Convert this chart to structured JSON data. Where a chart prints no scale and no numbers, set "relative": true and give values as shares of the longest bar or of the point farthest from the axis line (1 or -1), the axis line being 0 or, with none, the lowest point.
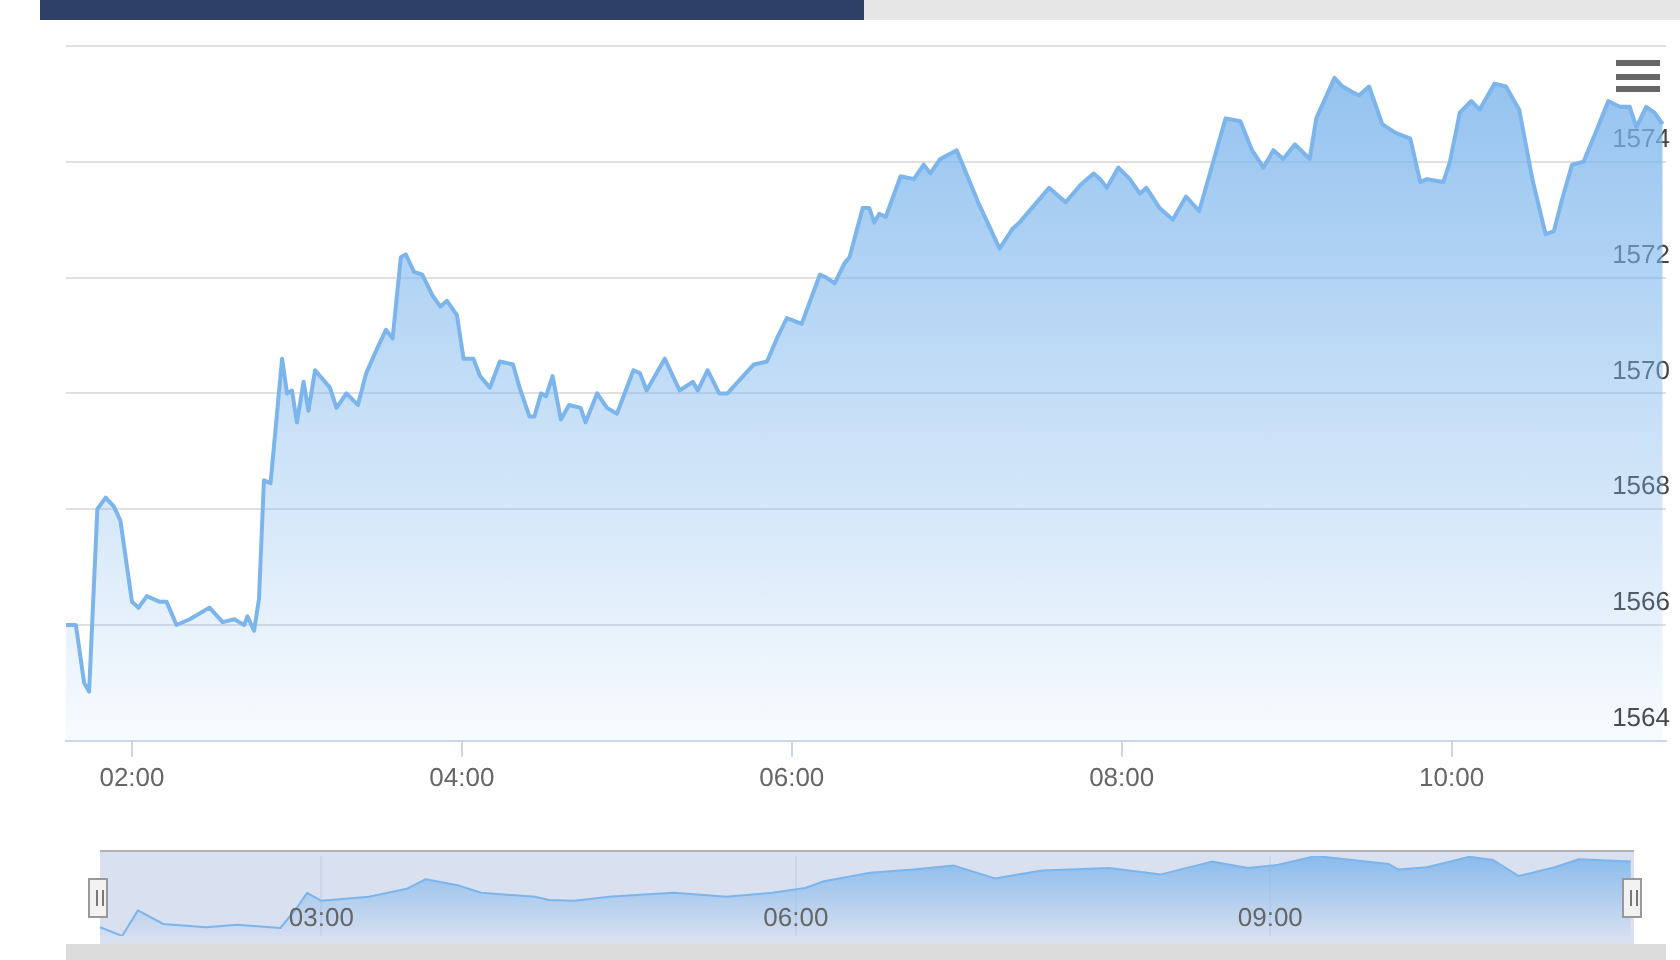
{
  "chart_data": [
    {
      "type": "area",
      "marker": "none",
      "grid": "y",
      "xlim": [
        1.6,
        11.3
      ],
      "xticks": [
        {
          "value": 2,
          "label": "02:00"
        },
        {
          "value": 4,
          "label": "04:00"
        },
        {
          "value": 6,
          "label": "06:00"
        },
        {
          "value": 8,
          "label": "08:00"
        },
        {
          "value": 10,
          "label": "10:00"
        }
      ],
      "ylim": [
        1564,
        1576
      ],
      "yticks": [
        1564,
        1566,
        1568,
        1570,
        1572,
        1574,
        {
          "value": 1576,
          "label": null
        }
      ],
      "x": [
        1.6,
        1.66,
        1.71,
        1.74,
        1.79,
        1.84,
        1.89,
        1.93,
        2.0,
        2.04,
        2.09,
        2.17,
        2.21,
        2.27,
        2.35,
        2.47,
        2.55,
        2.62,
        2.68,
        2.7,
        2.74,
        2.77,
        2.8,
        2.84,
        2.91,
        2.94,
        2.97,
        3.0,
        3.04,
        3.07,
        3.11,
        3.2,
        3.24,
        3.3,
        3.37,
        3.42,
        3.49,
        3.54,
        3.58,
        3.63,
        3.66,
        3.71,
        3.76,
        3.82,
        3.87,
        3.91,
        3.97,
        4.01,
        4.07,
        4.11,
        4.17,
        4.23,
        4.31,
        4.35,
        4.41,
        4.44,
        4.48,
        4.51,
        4.55,
        4.6,
        4.65,
        4.72,
        4.75,
        4.82,
        4.88,
        4.94,
        5.04,
        5.08,
        5.12,
        5.23,
        5.32,
        5.4,
        5.43,
        5.49,
        5.56,
        5.61,
        5.77,
        5.85,
        5.91,
        5.97,
        6.06,
        6.17,
        6.21,
        6.26,
        6.32,
        6.35,
        6.43,
        6.47,
        6.5,
        6.53,
        6.57,
        6.66,
        6.74,
        6.8,
        6.84,
        6.9,
        7.0,
        7.13,
        7.26,
        7.34,
        7.38,
        7.56,
        7.66,
        7.75,
        7.83,
        7.87,
        7.91,
        7.98,
        8.05,
        8.11,
        8.15,
        8.23,
        8.31,
        8.39,
        8.47,
        8.53,
        8.63,
        8.72,
        8.79,
        8.86,
        8.92,
        8.98,
        9.05,
        9.14,
        9.18,
        9.29,
        9.34,
        9.4,
        9.44,
        9.5,
        9.58,
        9.66,
        9.75,
        9.81,
        9.85,
        9.95,
        9.99,
        10.05,
        10.12,
        10.17,
        10.26,
        10.33,
        10.41,
        10.49,
        10.57,
        10.62,
        10.67,
        10.73,
        10.8,
        10.88,
        10.95,
        11.02,
        11.08,
        11.12,
        11.18,
        11.23,
        11.28
      ],
      "series": [
        {
          "color": "#7cb5ec",
          "values": [
            1566.0,
            1566.0,
            1565.0,
            1564.85,
            1568.0,
            1568.2,
            1568.05,
            1567.8,
            1566.4,
            1566.3,
            1566.5,
            1566.4,
            1566.4,
            1566.0,
            1566.1,
            1566.3,
            1566.05,
            1566.1,
            1566.0,
            1566.15,
            1565.9,
            1566.45,
            1568.5,
            1568.45,
            1570.6,
            1570.0,
            1570.05,
            1569.5,
            1570.2,
            1569.7,
            1570.4,
            1570.1,
            1569.75,
            1570.0,
            1569.8,
            1570.35,
            1570.8,
            1571.1,
            1570.95,
            1572.35,
            1572.4,
            1572.1,
            1572.05,
            1571.7,
            1571.5,
            1571.6,
            1571.35,
            1570.6,
            1570.6,
            1570.3,
            1570.1,
            1570.55,
            1570.5,
            1570.1,
            1569.6,
            1569.6,
            1570.0,
            1569.95,
            1570.3,
            1569.55,
            1569.8,
            1569.75,
            1569.5,
            1570.0,
            1569.75,
            1569.65,
            1570.4,
            1570.35,
            1570.05,
            1570.6,
            1570.05,
            1570.2,
            1570.05,
            1570.4,
            1570.0,
            1570.0,
            1570.5,
            1570.55,
            1570.95,
            1571.3,
            1571.2,
            1572.05,
            1572.0,
            1571.9,
            1572.25,
            1572.35,
            1573.2,
            1573.2,
            1572.95,
            1573.1,
            1573.05,
            1573.75,
            1573.7,
            1573.95,
            1573.8,
            1574.05,
            1574.2,
            1573.3,
            1572.5,
            1572.85,
            1572.95,
            1573.55,
            1573.3,
            1573.6,
            1573.8,
            1573.7,
            1573.55,
            1573.9,
            1573.7,
            1573.45,
            1573.55,
            1573.2,
            1573.0,
            1573.4,
            1573.15,
            1573.75,
            1574.75,
            1574.7,
            1574.2,
            1573.9,
            1574.2,
            1574.05,
            1574.3,
            1574.05,
            1574.75,
            1575.45,
            1575.3,
            1575.2,
            1575.15,
            1575.3,
            1574.65,
            1574.5,
            1574.4,
            1573.65,
            1573.7,
            1573.65,
            1574.0,
            1574.85,
            1575.05,
            1574.9,
            1575.35,
            1575.3,
            1574.9,
            1573.7,
            1572.75,
            1572.8,
            1573.35,
            1573.95,
            1574.0,
            1574.55,
            1575.05,
            1574.95,
            1574.95,
            1574.6,
            1574.95,
            1574.85,
            1574.65
          ]
        }
      ]
    },
    {
      "type": "area",
      "relative": true,
      "marker": "none",
      "grid": "x",
      "tick_labels": "x",
      "xlim": [
        1.6,
        11.3
      ],
      "xticks": [
        {
          "value": 3,
          "label": "03:00"
        },
        {
          "value": 6,
          "label": "06:00"
        },
        {
          "value": 9,
          "label": "09:00"
        }
      ],
      "x": [
        1.6,
        1.74,
        1.84,
        2.0,
        2.27,
        2.47,
        2.74,
        2.84,
        2.91,
        3.0,
        3.3,
        3.54,
        3.66,
        3.87,
        4.01,
        4.35,
        4.44,
        4.6,
        4.82,
        5.04,
        5.23,
        5.56,
        5.85,
        6.06,
        6.17,
        6.47,
        6.74,
        7.0,
        7.26,
        7.56,
        7.98,
        8.31,
        8.63,
        8.86,
        9.05,
        9.29,
        9.75,
        9.81,
        9.99,
        10.26,
        10.41,
        10.57,
        10.8,
        10.95,
        11.28
      ],
      "series": [
        {
          "color": "#7cb5ec",
          "values": [
            0.11,
            0,
            0.32,
            0.15,
            0.11,
            0.14,
            0.1,
            0.34,
            0.54,
            0.44,
            0.49,
            0.59,
            0.71,
            0.63,
            0.54,
            0.49,
            0.45,
            0.44,
            0.49,
            0.52,
            0.54,
            0.49,
            0.54,
            0.6,
            0.68,
            0.79,
            0.83,
            0.88,
            0.72,
            0.82,
            0.85,
            0.77,
            0.93,
            0.85,
            0.89,
            1.0,
            0.9,
            0.83,
            0.86,
            0.99,
            0.95,
            0.75,
            0.86,
            0.96,
            0.93
          ]
        }
      ]
    }
  ]
}
